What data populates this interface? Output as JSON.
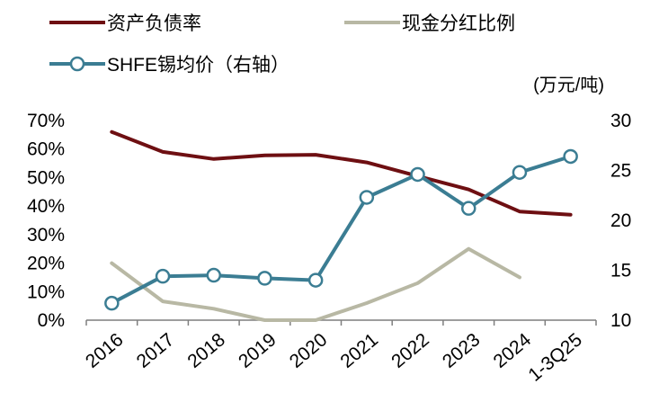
{
  "chart_data": {
    "type": "line",
    "categories": [
      "2016",
      "2017",
      "2018",
      "2019",
      "2020",
      "2021",
      "2022",
      "2023",
      "2024",
      "1-3Q25"
    ],
    "series": [
      {
        "name": "资产负债率",
        "axis": "left",
        "color": "#6e0f12",
        "marker": "none",
        "values": [
          0.66,
          0.59,
          0.565,
          0.578,
          0.58,
          0.553,
          0.505,
          0.458,
          0.381,
          0.37
        ]
      },
      {
        "name": "现金分红比例",
        "axis": "left",
        "color": "#b8b8a4",
        "marker": "none",
        "values": [
          0.2,
          0.066,
          0.04,
          0.0,
          0.0,
          0.06,
          0.13,
          0.25,
          0.15,
          null
        ]
      },
      {
        "name": "SHFE锡均价（右轴）",
        "axis": "right",
        "color": "#3b7d93",
        "marker": "circle",
        "values": [
          11.7,
          14.4,
          14.5,
          14.2,
          14.0,
          22.3,
          24.6,
          21.2,
          24.8,
          26.4
        ]
      }
    ],
    "y_left": {
      "min": 0,
      "max": 0.7,
      "step": 0.1,
      "ticks": [
        "0%",
        "10%",
        "20%",
        "30%",
        "40%",
        "50%",
        "60%",
        "70%"
      ]
    },
    "y_right": {
      "min": 10,
      "max": 30,
      "step": 5,
      "ticks": [
        "10",
        "15",
        "20",
        "25",
        "30"
      ],
      "unit_label": "(万元/吨)"
    },
    "grid": false,
    "legend_position": "top-left"
  }
}
